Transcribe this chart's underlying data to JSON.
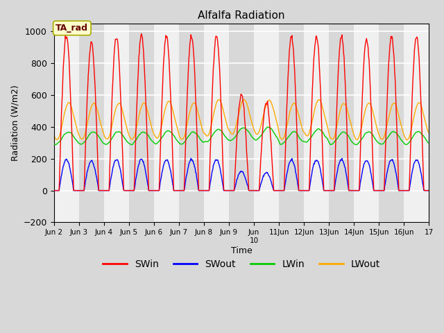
{
  "title": "Alfalfa Radiation",
  "ylabel": "Radiation (W/m2)",
  "xlabel": "Time",
  "annotation": "TA_rad",
  "ylim": [
    -200,
    1050
  ],
  "series_colors": {
    "SWin": "#ff0000",
    "SWout": "#0000ff",
    "LWin": "#00cc00",
    "LWout": "#ffaa00"
  },
  "legend_labels": [
    "SWin",
    "SWout",
    "LWin",
    "LWout"
  ],
  "legend_colors": [
    "#ff0000",
    "#0000ff",
    "#00cc00",
    "#ffaa00"
  ],
  "bg_color": "#d8d8d8",
  "plot_bg_color": "#d8d8d8",
  "white_band_color": "#f0f0f0",
  "annotation_bg": "#ffffcc",
  "annotation_border": "#aaaa00",
  "annotation_text_color": "#660000",
  "grid_color": "#ffffff",
  "lw": 1.0,
  "n_days": 15,
  "hours_per_day": 24,
  "tick_positions": [
    0,
    1,
    2,
    3,
    4,
    5,
    6,
    7,
    8,
    9,
    10,
    11,
    12,
    13,
    14,
    15
  ],
  "tick_labels": [
    "Jun 2",
    "Jun 3",
    "Jun 4",
    "Jun 5",
    "Jun 6",
    "Jun 7",
    "Jun 8",
    "Jun 9",
    "Jun\n10",
    "11Jun",
    "12Jun",
    "13Jun",
    "14Jun",
    "15Jun",
    "16Jun",
    "17"
  ],
  "figsize": [
    6.4,
    4.8
  ],
  "dpi": 100
}
